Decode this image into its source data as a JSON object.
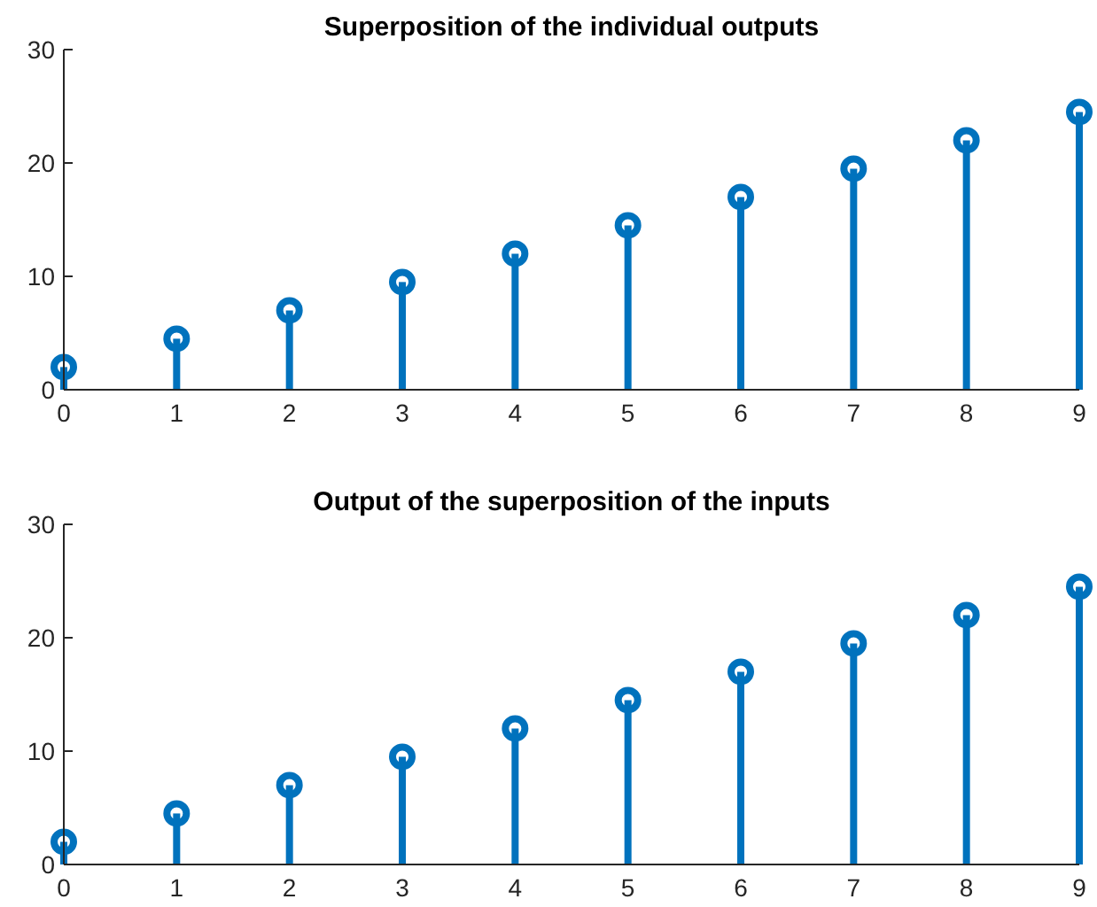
{
  "chart_data": [
    {
      "type": "lollipop",
      "title": "Superposition of the individual outputs",
      "x": [
        0,
        1,
        2,
        3,
        4,
        5,
        6,
        7,
        8,
        9
      ],
      "values": [
        2,
        4.5,
        7,
        9.5,
        12,
        14.5,
        17,
        19.5,
        22,
        24.5
      ],
      "color": "#0072bd",
      "xlim": [
        0,
        9
      ],
      "xticks": [
        0,
        1,
        2,
        3,
        4,
        5,
        6,
        7,
        8,
        9
      ],
      "ylim": [
        0,
        30
      ],
      "yticks": [
        0,
        10,
        20,
        30
      ],
      "marker": "circle"
    },
    {
      "type": "lollipop",
      "title": "Output of the superposition of the inputs",
      "x": [
        0,
        1,
        2,
        3,
        4,
        5,
        6,
        7,
        8,
        9
      ],
      "values": [
        2,
        4.5,
        7,
        9.5,
        12,
        14.5,
        17,
        19.5,
        22,
        24.5
      ],
      "color": "#0072bd",
      "xlim": [
        0,
        9
      ],
      "xticks": [
        0,
        1,
        2,
        3,
        4,
        5,
        6,
        7,
        8,
        9
      ],
      "ylim": [
        0,
        30
      ],
      "yticks": [
        0,
        10,
        20,
        30
      ],
      "marker": "circle"
    }
  ]
}
